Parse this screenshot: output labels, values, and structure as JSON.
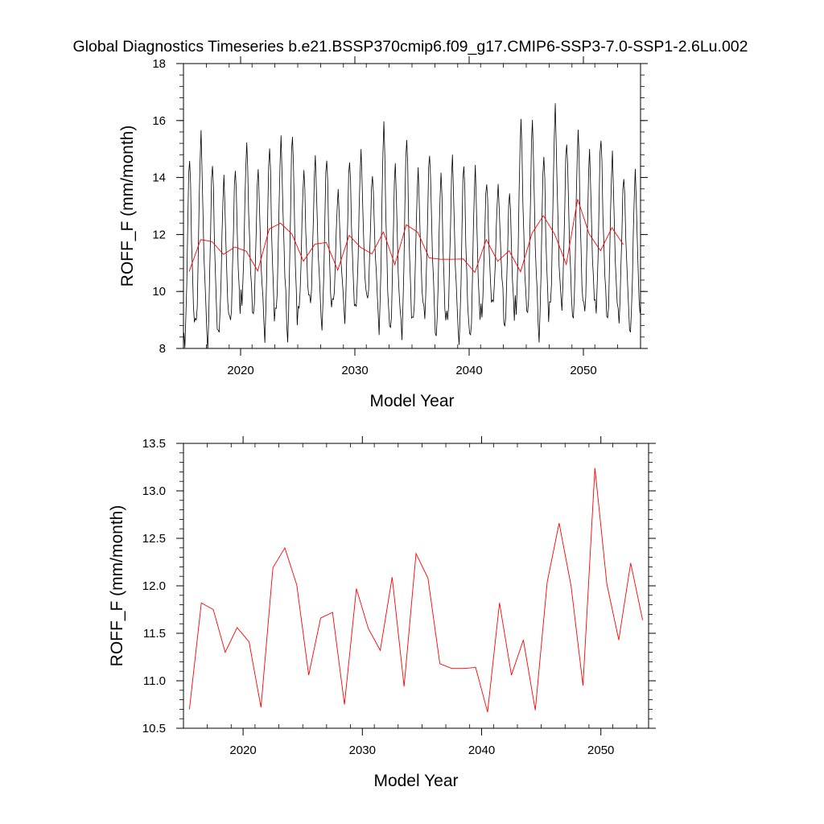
{
  "title": "Global Diagnostics Timeseries b.e21.BSSP370cmip6.f09_g17.CMIP6-SSP3-7.0-SSP1-2.6Lu.002",
  "colors": {
    "monthly": "#000000",
    "annual": "#ff0000",
    "axis": "#000000"
  },
  "chart_data": [
    {
      "type": "line",
      "title": "Global Diagnostics Timeseries b.e21.BSSP370cmip6.f09_g17.CMIP6-SSP3-7.0-SSP1-2.6Lu.002",
      "xlabel": "Model Year",
      "ylabel": "ROFF_F (mm/month)",
      "xlim": [
        2015,
        2055
      ],
      "ylim": [
        8,
        18
      ],
      "x_ticks": [
        2020,
        2030,
        2040,
        2050
      ],
      "x_tick_labels": [
        "2020",
        "2030",
        "2040",
        "2050"
      ],
      "y_ticks": [
        8,
        10,
        12,
        14,
        16,
        18
      ],
      "y_tick_labels": [
        "8",
        "10",
        "12",
        "14",
        "16",
        "18"
      ],
      "grid": false,
      "legend": "none",
      "series": [
        {
          "color": "#000000",
          "x_start": 2015.04,
          "x_step": 0.0833333,
          "annual_cycle_minima": [
            8.1,
            8.8,
            8.1,
            8.5,
            8.8,
            9.6,
            9.1,
            8.4,
            9.3,
            8.3,
            9.3,
            9.5,
            8.7,
            9.6,
            9.0,
            9.4,
            9.6,
            8.6,
            8.6,
            8.5,
            9.0,
            9.1,
            8.3,
            8.9,
            8.2,
            8.3,
            9.2,
            9.6,
            8.6,
            9.3,
            9.1,
            8.4,
            9.5,
            9.4,
            8.9,
            9.2,
            9.3,
            8.9,
            9.0,
            8.5
          ],
          "annual_cycle_peaks": [
            14.7,
            15.5,
            14.6,
            14.0,
            14.3,
            15.1,
            14.2,
            15.1,
            15.3,
            15.6,
            14.2,
            14.6,
            14.7,
            13.5,
            14.7,
            14.9,
            14.1,
            15.8,
            14.4,
            15.4,
            14.2,
            14.9,
            14.1,
            14.6,
            14.5,
            14.3,
            13.9,
            13.7,
            13.5,
            15.9,
            15.9,
            14.8,
            16.4,
            15.3,
            15.6,
            14.8,
            15.4,
            14.8,
            14.1,
            14.2
          ]
        },
        {
          "color": "#ff0000",
          "x": [
            2015.5,
            2016.5,
            2017.5,
            2018.5,
            2019.5,
            2020.5,
            2021.5,
            2022.5,
            2023.5,
            2024.5,
            2025.5,
            2026.5,
            2027.5,
            2028.5,
            2029.5,
            2030.5,
            2031.5,
            2032.5,
            2033.5,
            2034.5,
            2035.5,
            2036.5,
            2037.5,
            2038.5,
            2039.5,
            2040.5,
            2041.5,
            2042.5,
            2043.5,
            2044.5,
            2045.5,
            2046.5,
            2047.5,
            2048.5,
            2049.5,
            2050.5,
            2051.5,
            2052.5,
            2053.5
          ],
          "values": [
            10.7,
            11.82,
            11.75,
            11.3,
            11.56,
            11.41,
            10.72,
            12.19,
            12.4,
            12.01,
            11.06,
            11.66,
            11.72,
            10.75,
            11.97,
            11.55,
            11.32,
            12.09,
            10.94,
            12.34,
            12.08,
            11.18,
            11.13,
            11.13,
            11.14,
            10.67,
            11.82,
            11.06,
            11.43,
            10.69,
            12.04,
            12.66,
            12.0,
            10.95,
            13.24,
            12.02,
            11.43,
            12.24,
            11.64
          ]
        }
      ]
    },
    {
      "type": "line",
      "xlabel": "Model Year",
      "ylabel": "ROFF_F (mm/month)",
      "xlim": [
        2015,
        2054
      ],
      "ylim": [
        10.5,
        13.5
      ],
      "x_ticks": [
        2020,
        2030,
        2040,
        2050
      ],
      "x_tick_labels": [
        "2020",
        "2030",
        "2040",
        "2050"
      ],
      "y_ticks": [
        10.5,
        11.0,
        11.5,
        12.0,
        12.5,
        13.0,
        13.5
      ],
      "y_tick_labels": [
        "10.5",
        "11.0",
        "11.5",
        "12.0",
        "12.5",
        "13.0",
        "13.5"
      ],
      "grid": false,
      "legend": "none",
      "series": [
        {
          "color": "#ff0000",
          "x": [
            2015.5,
            2016.5,
            2017.5,
            2018.5,
            2019.5,
            2020.5,
            2021.5,
            2022.5,
            2023.5,
            2024.5,
            2025.5,
            2026.5,
            2027.5,
            2028.5,
            2029.5,
            2030.5,
            2031.5,
            2032.5,
            2033.5,
            2034.5,
            2035.5,
            2036.5,
            2037.5,
            2038.5,
            2039.5,
            2040.5,
            2041.5,
            2042.5,
            2043.5,
            2044.5,
            2045.5,
            2046.5,
            2047.5,
            2048.5,
            2049.5,
            2050.5,
            2051.5,
            2052.5,
            2053.5
          ],
          "values": [
            10.7,
            11.82,
            11.75,
            11.3,
            11.56,
            11.41,
            10.72,
            12.19,
            12.4,
            12.01,
            11.06,
            11.66,
            11.72,
            10.75,
            11.97,
            11.55,
            11.32,
            12.09,
            10.94,
            12.34,
            12.08,
            11.18,
            11.13,
            11.13,
            11.14,
            10.67,
            11.82,
            11.06,
            11.43,
            10.69,
            12.04,
            12.66,
            12.0,
            10.95,
            13.24,
            12.02,
            11.43,
            12.24,
            11.64
          ]
        }
      ]
    }
  ]
}
